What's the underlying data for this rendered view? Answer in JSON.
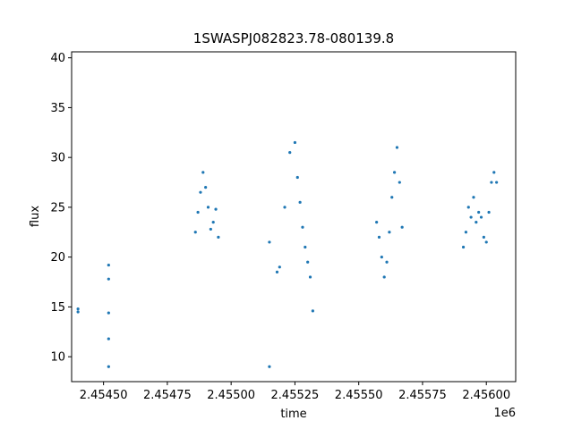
{
  "chart_data": {
    "type": "scatter",
    "title": "1SWASPJ082823.78-080139.8",
    "xlabel": "time",
    "ylabel": "flux",
    "x_offset_label": "1e6",
    "xlim": [
      2.454375,
      2.456115
    ],
    "ylim": [
      7.5,
      40.6
    ],
    "xticks": [
      2.4545,
      2.45475,
      2.455,
      2.45525,
      2.4555,
      2.45575,
      2.456
    ],
    "xtick_labels": [
      "2.45450",
      "2.45475",
      "2.45500",
      "2.45525",
      "2.45550",
      "2.45575",
      "2.45600"
    ],
    "yticks": [
      10,
      15,
      20,
      25,
      30,
      35,
      40
    ],
    "ytick_labels": [
      "10",
      "15",
      "20",
      "25",
      "30",
      "35",
      "40"
    ],
    "grid": false,
    "marker_color": "#1f77b4",
    "series": [
      {
        "x": [
          2.4544,
          2.4544,
          2.45452,
          2.45452,
          2.45452,
          2.45452,
          2.45452,
          2.45486,
          2.45487,
          2.45488,
          2.45489,
          2.4549,
          2.45491,
          2.45492,
          2.45493,
          2.45494,
          2.45495,
          2.45515,
          2.45515,
          2.45518,
          2.45519,
          2.45521,
          2.45523,
          2.45525,
          2.45526,
          2.45527,
          2.45528,
          2.45529,
          2.4553,
          2.45531,
          2.45532,
          2.45557,
          2.45558,
          2.45559,
          2.4556,
          2.45561,
          2.45562,
          2.45563,
          2.45564,
          2.45565,
          2.45566,
          2.45567,
          2.45591,
          2.45592,
          2.45593,
          2.45594,
          2.45595,
          2.45596,
          2.45597,
          2.45598,
          2.45599,
          2.456,
          2.45601,
          2.45602,
          2.45603,
          2.45604
        ],
        "y": [
          14.8,
          14.5,
          17.8,
          19.2,
          14.4,
          11.8,
          9.0,
          22.5,
          24.5,
          26.5,
          28.5,
          27.0,
          25.0,
          22.8,
          23.5,
          24.8,
          22.0,
          9.0,
          21.5,
          18.5,
          19.0,
          25.0,
          30.5,
          31.5,
          28.0,
          25.5,
          23.0,
          21.0,
          19.5,
          18.0,
          14.6,
          23.5,
          22.0,
          20.0,
          18.0,
          19.5,
          22.5,
          26.0,
          28.5,
          31.0,
          27.5,
          23.0,
          21.0,
          22.5,
          25.0,
          24.0,
          26.0,
          23.5,
          24.5,
          24.0,
          22.0,
          21.5,
          24.5,
          27.5,
          28.5,
          27.5
        ]
      }
    ]
  }
}
